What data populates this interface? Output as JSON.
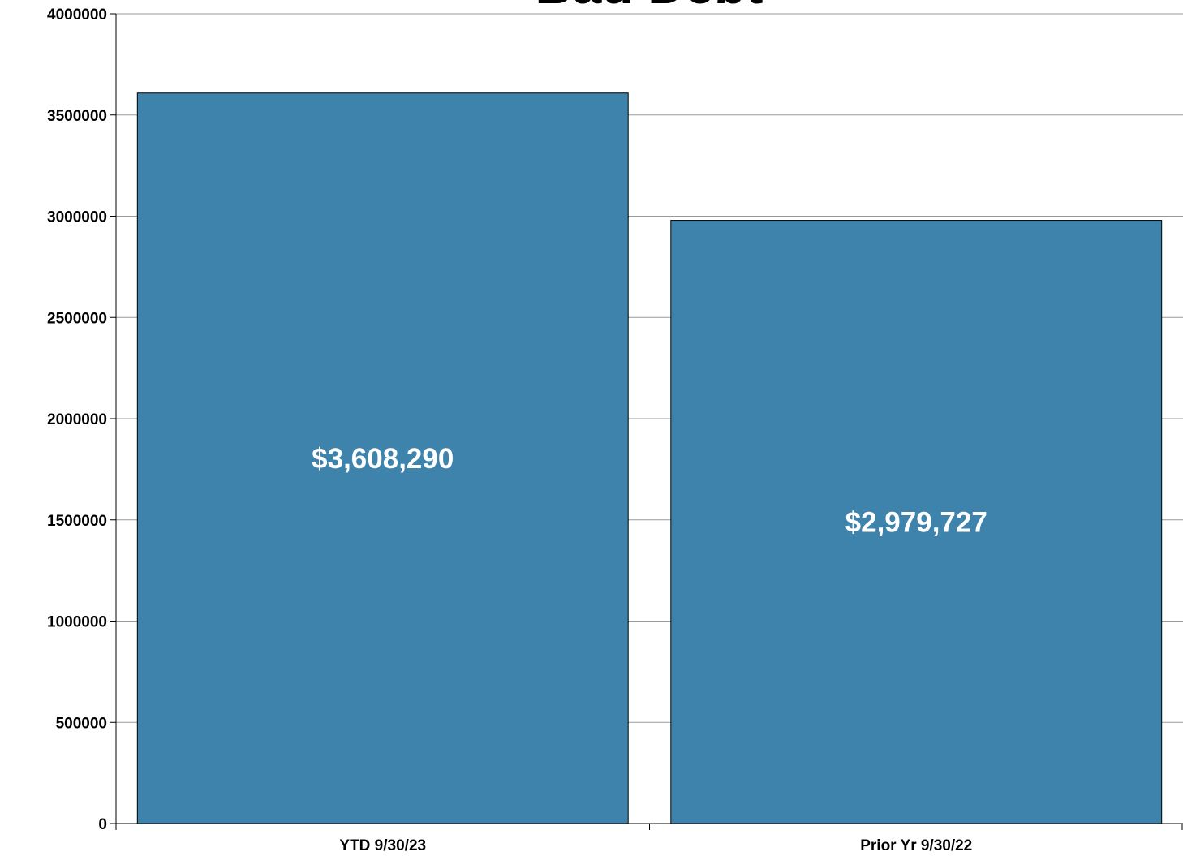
{
  "chart_data": {
    "type": "bar",
    "title": "Bad Debt",
    "categories": [
      "YTD 9/30/23",
      "Prior Yr 9/30/22"
    ],
    "values": [
      3608290,
      2979727
    ],
    "data_labels": [
      "$3,608,290",
      "$2,979,727"
    ],
    "xlabel": "",
    "ylabel": "",
    "ylim": [
      0,
      4000000
    ],
    "yticks": [
      0,
      500000,
      1000000,
      1500000,
      2000000,
      2500000,
      3000000,
      3500000,
      4000000
    ],
    "ytick_labels": [
      "0",
      "500000",
      "1000000",
      "1500000",
      "2000000",
      "2500000",
      "3000000",
      "3500000",
      "4000000"
    ],
    "grid": true,
    "legend": "none",
    "colors": {
      "bar": "#3d83ab",
      "bar_border": "#000000",
      "grid": "#999999",
      "axis": "#000000",
      "data_label": "#ffffff"
    }
  }
}
